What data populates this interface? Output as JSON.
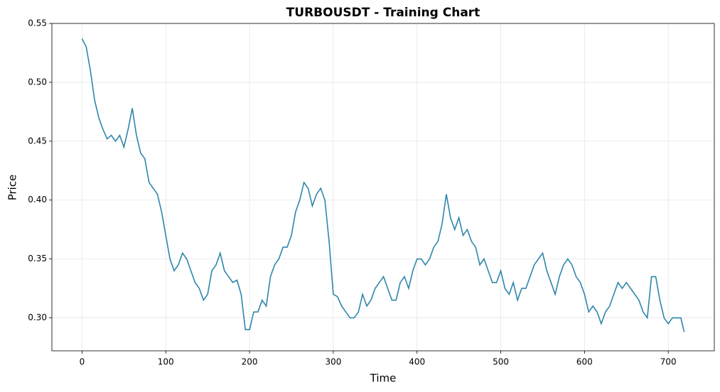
{
  "chart_data": {
    "type": "line",
    "title": "TURBOUSDT - Training Chart",
    "x_label": "Time",
    "y_label": "Price",
    "x": [
      0,
      5,
      10,
      15,
      20,
      25,
      30,
      35,
      40,
      45,
      50,
      55,
      60,
      65,
      70,
      75,
      80,
      85,
      90,
      95,
      100,
      105,
      110,
      115,
      120,
      125,
      130,
      135,
      140,
      145,
      150,
      155,
      160,
      165,
      170,
      175,
      180,
      185,
      190,
      195,
      200,
      205,
      210,
      215,
      220,
      225,
      230,
      235,
      240,
      245,
      250,
      255,
      260,
      265,
      270,
      275,
      280,
      285,
      290,
      295,
      300,
      305,
      310,
      315,
      320,
      325,
      330,
      335,
      340,
      345,
      350,
      355,
      360,
      365,
      370,
      375,
      380,
      385,
      390,
      395,
      400,
      405,
      410,
      415,
      420,
      425,
      430,
      435,
      440,
      445,
      450,
      455,
      460,
      465,
      470,
      475,
      480,
      485,
      490,
      495,
      500,
      505,
      510,
      515,
      520,
      525,
      530,
      535,
      540,
      545,
      550,
      555,
      560,
      565,
      570,
      575,
      580,
      585,
      590,
      595,
      600,
      605,
      610,
      615,
      620,
      625,
      630,
      635,
      640,
      645,
      650,
      655,
      660,
      665,
      670,
      675,
      680,
      685,
      690,
      695,
      700,
      705,
      710,
      715,
      719
    ],
    "series": [
      {
        "name": "Price",
        "color": "#2e86ab",
        "values": [
          0.537,
          0.53,
          0.51,
          0.485,
          0.47,
          0.46,
          0.452,
          0.455,
          0.45,
          0.455,
          0.445,
          0.46,
          0.478,
          0.455,
          0.44,
          0.435,
          0.415,
          0.41,
          0.405,
          0.39,
          0.37,
          0.35,
          0.34,
          0.345,
          0.355,
          0.35,
          0.34,
          0.33,
          0.325,
          0.315,
          0.32,
          0.34,
          0.345,
          0.355,
          0.34,
          0.335,
          0.33,
          0.332,
          0.32,
          0.29,
          0.29,
          0.305,
          0.305,
          0.315,
          0.31,
          0.335,
          0.345,
          0.35,
          0.36,
          0.36,
          0.37,
          0.39,
          0.4,
          0.415,
          0.41,
          0.395,
          0.405,
          0.41,
          0.4,
          0.365,
          0.32,
          0.318,
          0.31,
          0.305,
          0.3,
          0.3,
          0.305,
          0.32,
          0.31,
          0.315,
          0.325,
          0.33,
          0.335,
          0.325,
          0.315,
          0.315,
          0.33,
          0.335,
          0.325,
          0.34,
          0.35,
          0.35,
          0.345,
          0.35,
          0.36,
          0.365,
          0.38,
          0.405,
          0.385,
          0.375,
          0.385,
          0.37,
          0.375,
          0.365,
          0.36,
          0.345,
          0.35,
          0.34,
          0.33,
          0.33,
          0.34,
          0.325,
          0.32,
          0.33,
          0.315,
          0.325,
          0.325,
          0.335,
          0.345,
          0.35,
          0.355,
          0.34,
          0.33,
          0.32,
          0.335,
          0.345,
          0.35,
          0.345,
          0.335,
          0.33,
          0.32,
          0.305,
          0.31,
          0.305,
          0.295,
          0.305,
          0.31,
          0.32,
          0.33,
          0.325,
          0.33,
          0.325,
          0.32,
          0.315,
          0.305,
          0.3,
          0.335,
          0.335,
          0.315,
          0.3,
          0.295,
          0.3,
          0.3,
          0.3,
          0.288
        ]
      }
    ],
    "xlim": [
      -36,
      755
    ],
    "xticks": [
      0,
      100,
      200,
      300,
      400,
      500,
      600,
      700
    ],
    "ylim": [
      0.272,
      0.55
    ],
    "yticks": [
      0.3,
      0.35,
      0.4,
      0.45,
      0.5,
      0.55
    ],
    "grid": true
  }
}
